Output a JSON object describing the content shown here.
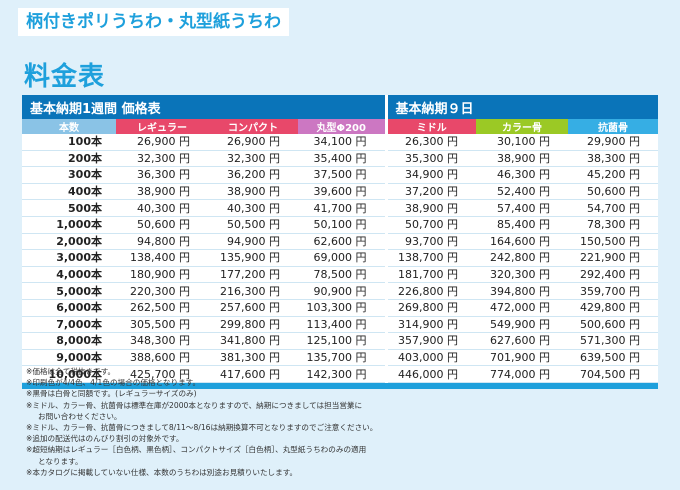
{
  "header": {
    "title": "柄付きポリうちわ・丸型紙うちわ",
    "section": "料金表"
  },
  "table": {
    "group_left": "基本納期1週間 価格表",
    "group_right": "基本納期９日",
    "columns": [
      "本数",
      "レギュラー",
      "コンパクト",
      "丸型Φ200",
      "ミドル",
      "カラー骨",
      "抗菌骨"
    ],
    "rows": [
      [
        "100本",
        "26,900 円",
        "26,900 円",
        "34,100 円",
        "26,300 円",
        "30,100 円",
        "29,900 円"
      ],
      [
        "200本",
        "32,300 円",
        "32,300 円",
        "35,400 円",
        "35,300 円",
        "38,900 円",
        "38,300 円"
      ],
      [
        "300本",
        "36,300 円",
        "36,200 円",
        "37,500 円",
        "34,900 円",
        "46,300 円",
        "45,200 円"
      ],
      [
        "400本",
        "38,900 円",
        "38,900 円",
        "39,600 円",
        "37,200 円",
        "52,400 円",
        "50,600 円"
      ],
      [
        "500本",
        "40,300 円",
        "40,300 円",
        "41,700 円",
        "38,900 円",
        "57,400 円",
        "54,700 円"
      ],
      [
        "1,000本",
        "50,600 円",
        "50,500 円",
        "50,100 円",
        "50,700 円",
        "85,400 円",
        "78,300 円"
      ],
      [
        "2,000本",
        "94,800 円",
        "94,900 円",
        "62,600 円",
        "93,700 円",
        "164,600 円",
        "150,500 円"
      ],
      [
        "3,000本",
        "138,400 円",
        "135,900 円",
        "69,000 円",
        "138,700 円",
        "242,800 円",
        "221,900 円"
      ],
      [
        "4,000本",
        "180,900 円",
        "177,200 円",
        "78,500 円",
        "181,700 円",
        "320,300 円",
        "292,400 円"
      ],
      [
        "5,000本",
        "220,300 円",
        "216,300 円",
        "90,900 円",
        "226,800 円",
        "394,800 円",
        "359,700 円"
      ],
      [
        "6,000本",
        "262,500 円",
        "257,600 円",
        "103,300 円",
        "269,800 円",
        "472,000 円",
        "429,800 円"
      ],
      [
        "7,000本",
        "305,500 円",
        "299,800 円",
        "113,400 円",
        "314,900 円",
        "549,900 円",
        "500,600 円"
      ],
      [
        "8,000本",
        "348,300 円",
        "341,800 円",
        "125,100 円",
        "357,900 円",
        "627,600 円",
        "571,300 円"
      ],
      [
        "9,000本",
        "388,600 円",
        "381,300 円",
        "135,700 円",
        "403,000 円",
        "701,900 円",
        "639,500 円"
      ],
      [
        "10,000本",
        "425,700 円",
        "417,600 円",
        "142,300 円",
        "446,000 円",
        "774,000 円",
        "704,500 円"
      ]
    ]
  },
  "notes": [
    "※価格は全て税抜きです。",
    "※印刷色が4/4色、4/1色の場合の価格となります。",
    "※黒骨は白骨と同額です。(レギュラーサイズのみ)",
    "※ミドル、カラー骨、抗菌骨は標準在庫が2000本となりますので、納期につきましては担当営業に",
    "お問い合わせください。",
    "※ミドル、カラー骨、抗菌骨につきまして8/11〜8/16は納期換算不可となりますのでご注意ください。",
    "※追加の配送代はのんびり割引の対象外です。",
    "※超短納期はレギュラー［白色柄、黒色柄］、コンパクトサイズ［白色柄］、丸型紙うちわのみの適用",
    "となります。",
    "※本カタログに掲載していない仕様、本数のうちわは別途お見積りいたします。"
  ]
}
